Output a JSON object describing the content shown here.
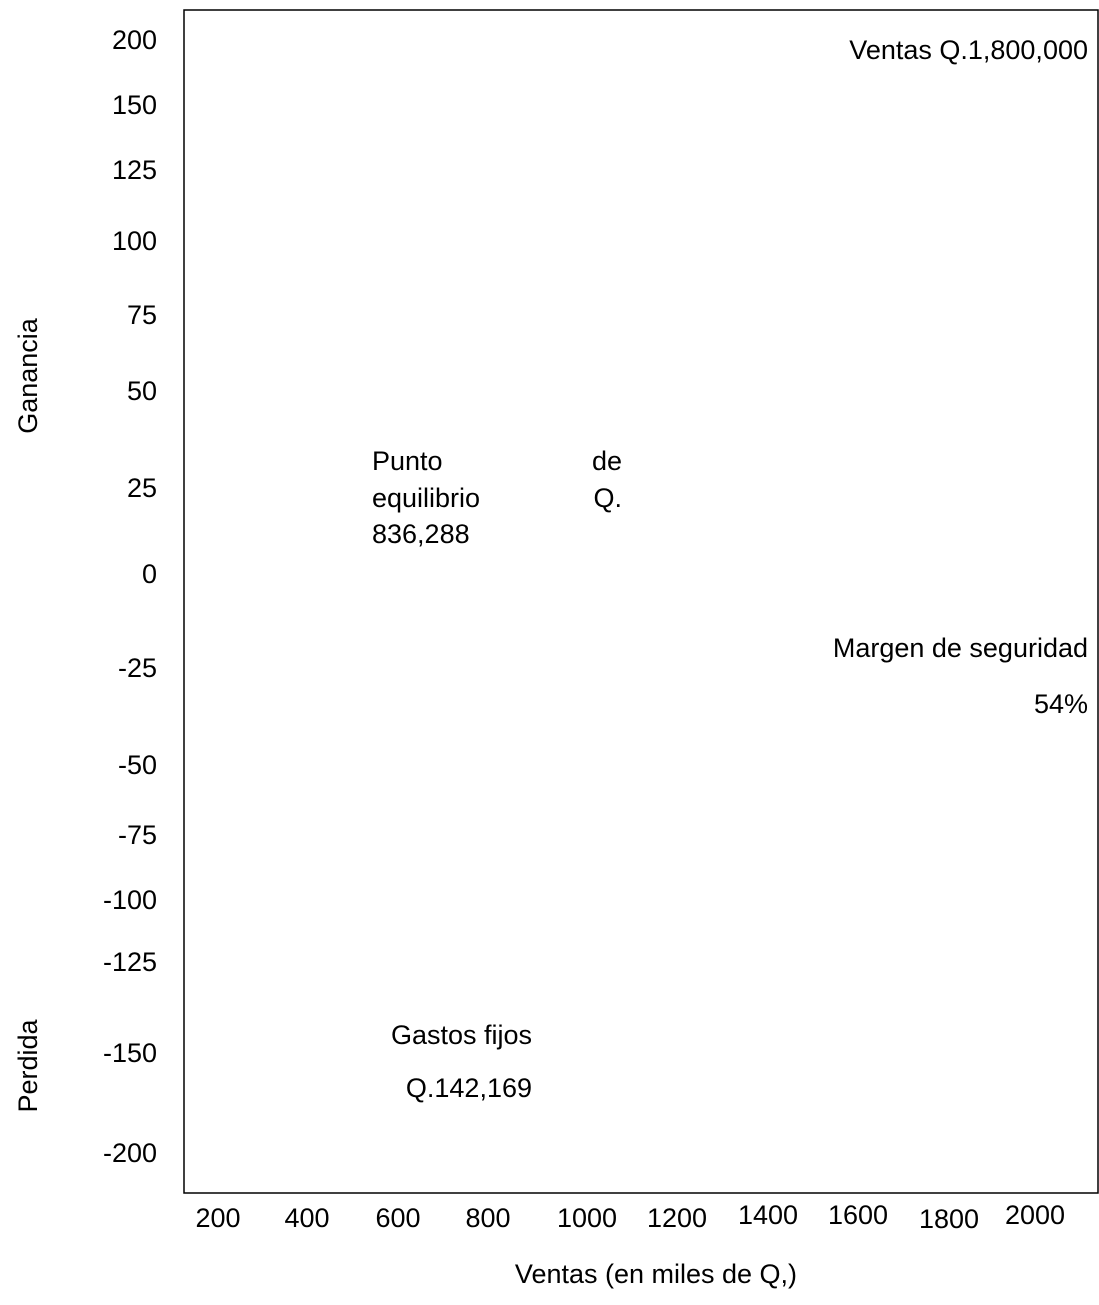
{
  "chart_data": {
    "type": "line",
    "title": "",
    "xlabel": "Ventas (en miles de Q,)",
    "ylabel_top": "Ganancia",
    "ylabel_bottom": "Perdida",
    "x_ticks": [
      "200",
      "400",
      "600",
      "800",
      "1000",
      "1200",
      "1400",
      "1600",
      "1800",
      "2000"
    ],
    "y_ticks": [
      "200",
      "150",
      "125",
      "100",
      "75",
      "50",
      "25",
      "0",
      "-25",
      "-50",
      "-75",
      "-100",
      "-125",
      "-150",
      "-200"
    ],
    "series": [],
    "grid": false,
    "annotations": {
      "ventas": "Ventas Q.1,800,000",
      "punto_line1_a": "Punto",
      "punto_line1_b": "de",
      "punto_line2_a": "equilibrio",
      "punto_line2_b": "Q.",
      "punto_line3": "836,288",
      "margen_line1": "Margen de seguridad",
      "margen_line2": "54%",
      "gastos_line1": "Gastos fijos",
      "gastos_line2": "Q.142,169"
    }
  }
}
